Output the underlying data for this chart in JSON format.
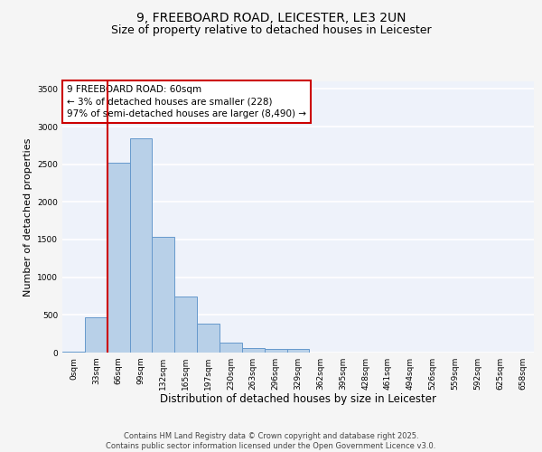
{
  "title_line1": "9, FREEBOARD ROAD, LEICESTER, LE3 2UN",
  "title_line2": "Size of property relative to detached houses in Leicester",
  "xlabel": "Distribution of detached houses by size in Leicester",
  "ylabel": "Number of detached properties",
  "categories": [
    "0sqm",
    "33sqm",
    "66sqm",
    "99sqm",
    "132sqm",
    "165sqm",
    "197sqm",
    "230sqm",
    "263sqm",
    "296sqm",
    "329sqm",
    "362sqm",
    "395sqm",
    "428sqm",
    "461sqm",
    "494sqm",
    "526sqm",
    "559sqm",
    "592sqm",
    "625sqm",
    "658sqm"
  ],
  "values": [
    15,
    470,
    2520,
    2840,
    1535,
    745,
    390,
    135,
    65,
    50,
    50,
    0,
    0,
    0,
    0,
    0,
    0,
    0,
    0,
    0,
    0
  ],
  "bar_color": "#b8d0e8",
  "bar_edge_color": "#6699cc",
  "background_color": "#eef2fa",
  "grid_color": "#ffffff",
  "annotation_text": "9 FREEBOARD ROAD: 60sqm\n← 3% of detached houses are smaller (228)\n97% of semi-detached houses are larger (8,490) →",
  "annotation_box_color": "#ffffff",
  "annotation_box_edge_color": "#cc0000",
  "vline_x": 1.5,
  "vline_color": "#cc0000",
  "ylim": [
    0,
    3600
  ],
  "yticks": [
    0,
    500,
    1000,
    1500,
    2000,
    2500,
    3000,
    3500
  ],
  "footer_line1": "Contains HM Land Registry data © Crown copyright and database right 2025.",
  "footer_line2": "Contains public sector information licensed under the Open Government Licence v3.0.",
  "title_fontsize": 10,
  "subtitle_fontsize": 9,
  "tick_fontsize": 6.5,
  "ylabel_fontsize": 8,
  "xlabel_fontsize": 8.5,
  "annotation_fontsize": 7.5,
  "footer_fontsize": 6
}
